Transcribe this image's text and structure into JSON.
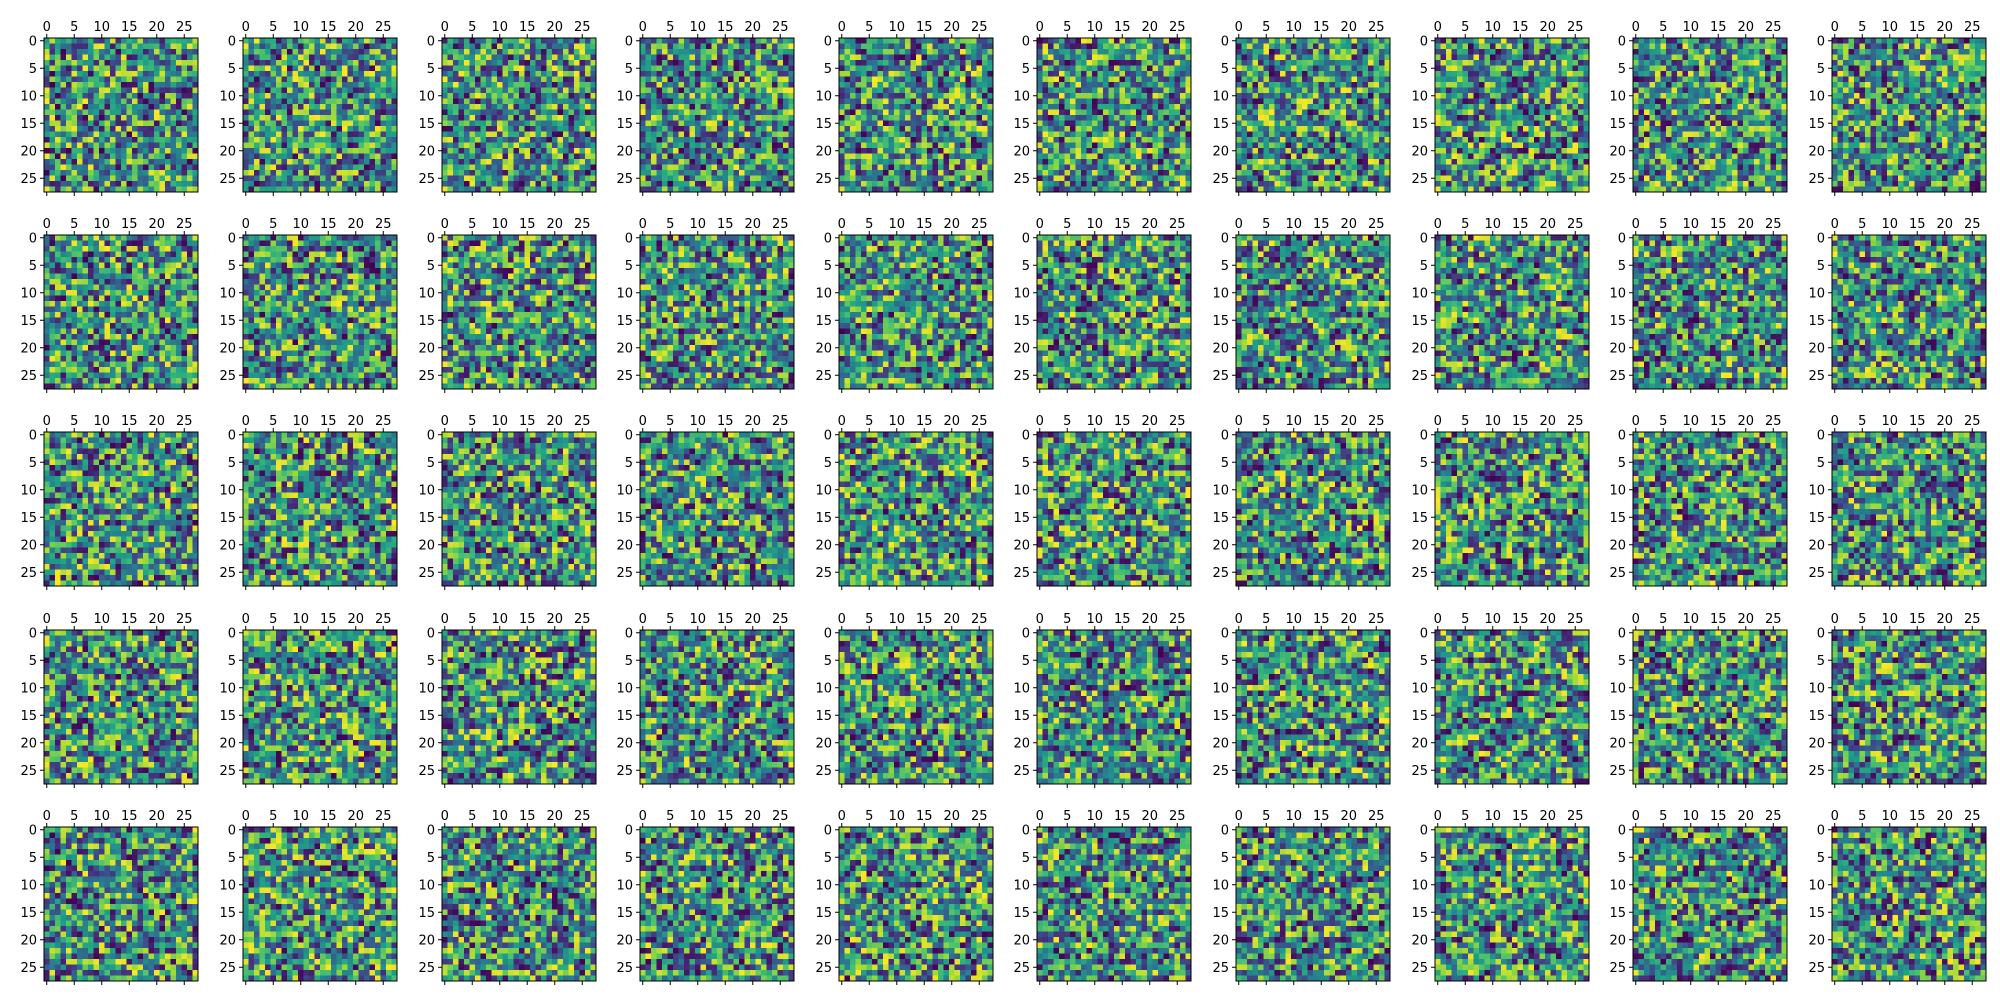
{
  "figure": {
    "rows": 5,
    "cols": 10,
    "colormap": "viridis",
    "colormap_stops": [
      "#440154",
      "#46327e",
      "#365c8d",
      "#277f8e",
      "#1fa187",
      "#4ac16d",
      "#a0da39",
      "#fde725"
    ],
    "value_range": [
      0,
      1
    ]
  },
  "chart_data": {
    "type": "heatmap",
    "layout": "grid of 5 x 10 image panels (matshow)",
    "image_size": [
      28,
      28
    ],
    "x_ticks": [
      0,
      5,
      10,
      15,
      20,
      25
    ],
    "y_ticks": [
      0,
      5,
      10,
      15,
      20,
      25
    ],
    "x_tick_labels": [
      "0",
      "5",
      "10",
      "15",
      "20",
      "25"
    ],
    "y_tick_labels": [
      "0",
      "5",
      "10",
      "15",
      "20",
      "25"
    ],
    "x_tick_position": "top",
    "bottom_row_x_tick_labels": false,
    "xlim": [
      -0.5,
      27.5
    ],
    "ylim": [
      27.5,
      -0.5
    ],
    "grid": false,
    "legend": "none",
    "cell_values_note": "random noise (pixel values not legible)"
  }
}
